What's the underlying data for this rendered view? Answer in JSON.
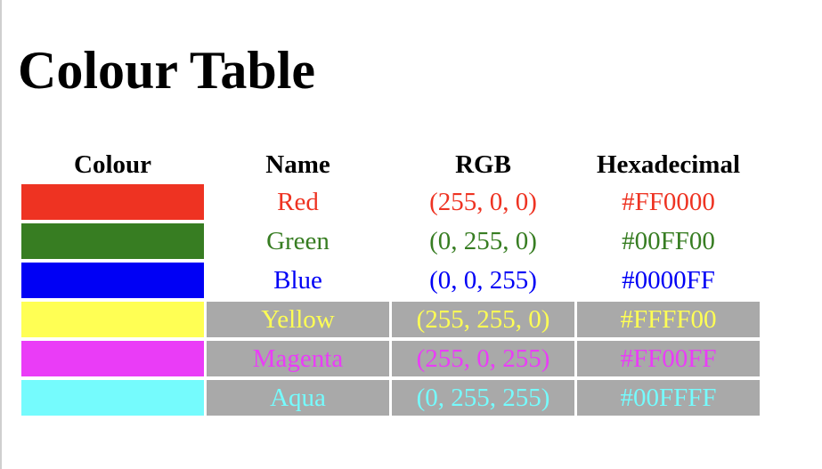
{
  "title": "Colour Table",
  "table": {
    "headers": [
      "Colour",
      "Name",
      "RGB",
      "Hexadecimal"
    ],
    "rows": [
      {
        "name": "Red",
        "rgb": "(255, 0, 0)",
        "hex": "#FF0000",
        "swatch_color": "#ee3322",
        "text_color": "#ee3322",
        "shaded": false
      },
      {
        "name": "Green",
        "rgb": "(0, 255, 0)",
        "hex": "#00FF00",
        "swatch_color": "#377d22",
        "text_color": "#377d22",
        "shaded": false
      },
      {
        "name": "Blue",
        "rgb": "(0, 0, 255)",
        "hex": "#0000FF",
        "swatch_color": "#0000f5",
        "text_color": "#0000f5",
        "shaded": false
      },
      {
        "name": "Yellow",
        "rgb": "(255, 255, 0)",
        "hex": "#FFFF00",
        "swatch_color": "#ffff54",
        "text_color": "#ffff54",
        "shaded": true
      },
      {
        "name": "Magenta",
        "rgb": "(255, 0, 255)",
        "hex": "#FF00FF",
        "swatch_color": "#ea3cf7",
        "text_color": "#ea3cf7",
        "shaded": true
      },
      {
        "name": "Aqua",
        "rgb": "(0, 255, 255)",
        "hex": "#00FFFF",
        "swatch_color": "#75fbfd",
        "text_color": "#75fbfd",
        "shaded": true
      }
    ],
    "shade_color": "#a9a9a9"
  }
}
